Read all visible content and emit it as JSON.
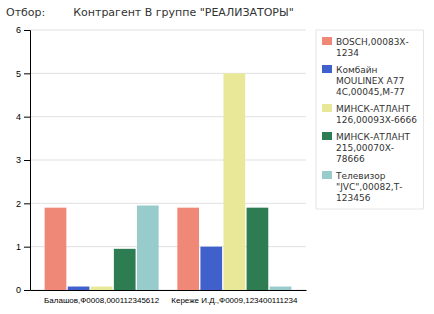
{
  "chart_data": {
    "type": "bar",
    "title": "Отбор:        Контрагент В группе \"РЕАЛИЗАТОРЫ\"",
    "categories": [
      "Балашов,Ф0008,000112345612",
      "Кереже И.Д.,Ф0009,123400111234"
    ],
    "series": [
      {
        "name": "BOSCH,00083Х-\n1234",
        "color": "#F08878",
        "values": [
          1.9,
          1.9
        ]
      },
      {
        "name": "Комбайн\nMOULINEX A77\n4С,00045,М-77",
        "color": "#4060CC",
        "values": [
          0.08,
          1.0
        ]
      },
      {
        "name": "МИНСК-АТЛАНТ\n126,00093Х-6666",
        "color": "#E8E898",
        "values": [
          0.08,
          5.0
        ]
      },
      {
        "name": "МИНСК-АТЛАНТ\n215,00070Х-\n78666",
        "color": "#2E7D52",
        "values": [
          0.95,
          1.9
        ]
      },
      {
        "name": "Телевизор\n\"JVC\",00082,Т-\n123456",
        "color": "#98CCCC",
        "values": [
          1.95,
          0.08
        ]
      }
    ],
    "ylim": [
      0,
      6
    ],
    "yticks": [
      0,
      1,
      2,
      3,
      4,
      5,
      6
    ],
    "grid": true,
    "legend": "right"
  }
}
